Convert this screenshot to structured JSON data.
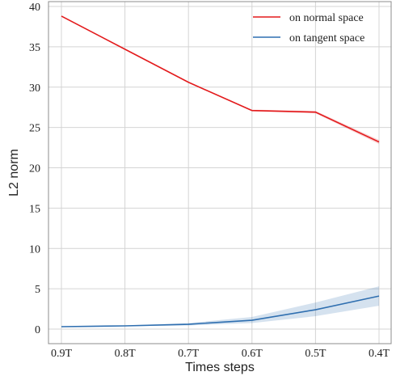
{
  "chart_data": {
    "type": "line",
    "xlabel": "Times steps",
    "ylabel": "L2 norm",
    "categories": [
      "0.9T",
      "0.8T",
      "0.7T",
      "0.6T",
      "0.5T",
      "0.4T"
    ],
    "ylim": [
      -1.5,
      40
    ],
    "yticks": [
      0,
      5,
      10,
      15,
      20,
      25,
      30,
      35,
      40
    ],
    "grid": true,
    "legend_position": "top-right",
    "series": [
      {
        "name": "on normal space",
        "color": "#e31a1c",
        "values": [
          38.8,
          34.7,
          30.6,
          27.1,
          26.9,
          23.2
        ],
        "lower": [
          38.75,
          34.65,
          30.55,
          27.0,
          26.75,
          22.95
        ],
        "upper": [
          38.85,
          34.75,
          30.65,
          27.2,
          27.05,
          23.45
        ]
      },
      {
        "name": "on tangent space",
        "color": "#2f6fb0",
        "values": [
          0.3,
          0.4,
          0.6,
          1.1,
          2.4,
          4.1
        ],
        "lower": [
          0.25,
          0.35,
          0.45,
          0.75,
          1.6,
          2.9
        ],
        "upper": [
          0.35,
          0.45,
          0.75,
          1.5,
          3.3,
          5.3
        ]
      }
    ]
  }
}
